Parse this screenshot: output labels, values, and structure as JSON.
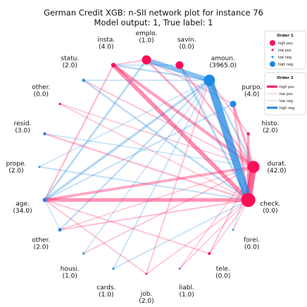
{
  "chart_data": {
    "type": "network",
    "title_line1": "German Credit XGB: n-SII network plot for instance 76",
    "title_line2": "Model output: 1, True label: 1",
    "colors": {
      "high_pos": "#ff0d57",
      "low_pos": "#ffb7cd",
      "low_neg": "#b4d8f2",
      "high_neg": "#1e88e5"
    },
    "nodes": [
      {
        "id": "check",
        "name": "check.",
        "value": "(0.0)",
        "first_order": 0.9
      },
      {
        "id": "durat",
        "name": "durat.",
        "value": "(42.0)",
        "first_order": 0.75
      },
      {
        "id": "histo",
        "name": "histo.",
        "value": "(2.0)",
        "first_order": 0.12
      },
      {
        "id": "purpo",
        "name": "purpo.",
        "value": "(4.0)",
        "first_order": -0.35
      },
      {
        "id": "amoun",
        "name": "amoun.",
        "value": "(3965.0)",
        "first_order": -0.7
      },
      {
        "id": "savin",
        "name": "savin.",
        "value": "(0.0)",
        "first_order": 0.45
      },
      {
        "id": "emplo",
        "name": "emplo.",
        "value": "(1.0)",
        "first_order": 0.55
      },
      {
        "id": "insta",
        "name": "insta.",
        "value": "(4.0)",
        "first_order": 0.22
      },
      {
        "id": "statu",
        "name": "statu.",
        "value": "(2.0)",
        "first_order": -0.12
      },
      {
        "id": "other1",
        "name": "other.",
        "value": "(0.0)",
        "first_order": 0.06
      },
      {
        "id": "resid",
        "name": "resid.",
        "value": "(3.0)",
        "first_order": -0.12
      },
      {
        "id": "prope",
        "name": "prope.",
        "value": "(2.0)",
        "first_order": -0.04
      },
      {
        "id": "age",
        "name": "age.",
        "value": "(34.0)",
        "first_order": -0.2
      },
      {
        "id": "other2",
        "name": "other.",
        "value": "(2.0)",
        "first_order": -0.15
      },
      {
        "id": "housi",
        "name": "housi.",
        "value": "(1.0)",
        "first_order": -0.06
      },
      {
        "id": "cards",
        "name": "cards.",
        "value": "(1.0)",
        "first_order": -0.06
      },
      {
        "id": "job",
        "name": "job.",
        "value": "(2.0)",
        "first_order": 0.04
      },
      {
        "id": "liabl",
        "name": "liabl.",
        "value": "(1.0)",
        "first_order": -0.04
      },
      {
        "id": "tele",
        "name": "tele.",
        "value": "(0.0)",
        "first_order": 0.1
      },
      {
        "id": "forei",
        "name": "forei.",
        "value": "(0.0)",
        "first_order": -0.03
      }
    ],
    "edges": [
      {
        "source": "amoun",
        "target": "check",
        "value": -1.0
      },
      {
        "source": "durat",
        "target": "check",
        "value": 0.8
      },
      {
        "source": "emplo",
        "target": "amoun",
        "value": -0.6
      },
      {
        "source": "insta",
        "target": "check",
        "value": 0.5
      },
      {
        "source": "insta",
        "target": "durat",
        "value": 0.35
      },
      {
        "source": "age",
        "target": "check",
        "value": 0.45
      },
      {
        "source": "age",
        "target": "durat",
        "value": 0.3
      },
      {
        "source": "age",
        "target": "amoun",
        "value": -0.25
      },
      {
        "source": "age",
        "target": "emplo",
        "value": -0.2
      },
      {
        "source": "histo",
        "target": "check",
        "value": 0.3
      },
      {
        "source": "purpo",
        "target": "durat",
        "value": 0.25
      },
      {
        "source": "purpo",
        "target": "check",
        "value": 0.2
      },
      {
        "source": "savin",
        "target": "check",
        "value": -0.22
      },
      {
        "source": "savin",
        "target": "durat",
        "value": 0.18
      },
      {
        "source": "emplo",
        "target": "durat",
        "value": 0.22
      },
      {
        "source": "insta",
        "target": "amoun",
        "value": -0.18
      },
      {
        "source": "statu",
        "target": "check",
        "value": -0.18
      },
      {
        "source": "resid",
        "target": "check",
        "value": 0.15
      },
      {
        "source": "prope",
        "target": "check",
        "value": -0.12
      },
      {
        "source": "other2",
        "target": "amoun",
        "value": -0.15
      },
      {
        "source": "other2",
        "target": "check",
        "value": 0.12
      },
      {
        "source": "housi",
        "target": "durat",
        "value": 0.1
      },
      {
        "source": "cards",
        "target": "check",
        "value": -0.1
      },
      {
        "source": "job",
        "target": "amoun",
        "value": 0.1
      },
      {
        "source": "liabl",
        "target": "check",
        "value": 0.08
      },
      {
        "source": "tele",
        "target": "durat",
        "value": 0.1
      },
      {
        "source": "forei",
        "target": "check",
        "value": 0.06
      },
      {
        "source": "other1",
        "target": "durat",
        "value": 0.08
      },
      {
        "source": "statu",
        "target": "amoun",
        "value": -0.1
      },
      {
        "source": "resid",
        "target": "durat",
        "value": -0.08
      },
      {
        "source": "age",
        "target": "insta",
        "value": 0.15
      },
      {
        "source": "age",
        "target": "purpo",
        "value": -0.12
      },
      {
        "source": "age",
        "target": "job",
        "value": 0.1
      },
      {
        "source": "age",
        "target": "tele",
        "value": 0.1
      },
      {
        "source": "age",
        "target": "other2",
        "value": -0.08
      },
      {
        "source": "insta",
        "target": "emplo",
        "value": 0.12
      },
      {
        "source": "insta",
        "target": "savin",
        "value": -0.1
      },
      {
        "source": "emplo",
        "target": "purpo",
        "value": 0.1
      },
      {
        "source": "amoun",
        "target": "durat",
        "value": -0.2
      },
      {
        "source": "amoun",
        "target": "histo",
        "value": 0.12
      },
      {
        "source": "statu",
        "target": "durat",
        "value": 0.1
      },
      {
        "source": "other1",
        "target": "check",
        "value": 0.08
      },
      {
        "source": "prope",
        "target": "amoun",
        "value": -0.08
      },
      {
        "source": "cards",
        "target": "amoun",
        "value": -0.1
      },
      {
        "source": "housi",
        "target": "amoun",
        "value": -0.08
      },
      {
        "source": "liabl",
        "target": "durat",
        "value": 0.08
      },
      {
        "source": "forei",
        "target": "durat",
        "value": -0.06
      },
      {
        "source": "job",
        "target": "check",
        "value": 0.08
      },
      {
        "source": "other2",
        "target": "durat",
        "value": 0.08
      },
      {
        "source": "tele",
        "target": "check",
        "value": 0.08
      }
    ],
    "legend": {
      "order1_title": "Order 1",
      "order1_items": [
        "high pos.",
        "low pos.",
        "low neg.",
        "high neg."
      ],
      "order2_title": "Order 2",
      "order2_items": [
        "high pos.",
        "low pos.",
        "low neg.",
        "high neg."
      ],
      "placement": "top-right"
    }
  }
}
